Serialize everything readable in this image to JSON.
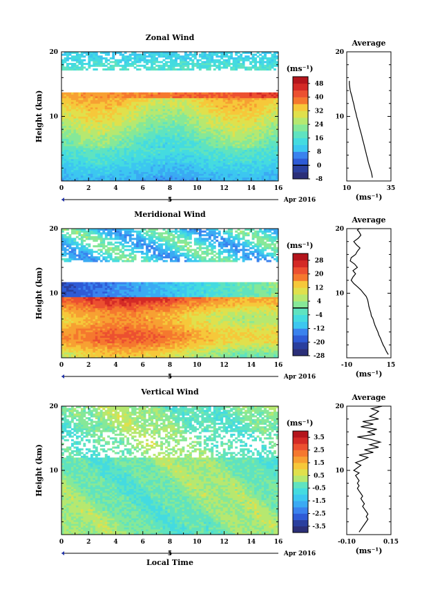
{
  "chart_data": [
    {
      "type": "heatmap",
      "title": "Zonal Wind",
      "ylabel": "Height (km)",
      "xlim": [
        0,
        16
      ],
      "ylim": [
        0,
        20
      ],
      "x_ticks": [
        "0",
        "2",
        "4",
        "6",
        "8",
        "10",
        "12",
        "14",
        "16"
      ],
      "y_ticks": [
        "10",
        "20"
      ],
      "date_label": "Apr 2016",
      "day_marker": "5",
      "colorbar": {
        "unit": "(ms⁻¹)",
        "levels": [
          -8,
          -4,
          0,
          4,
          8,
          12,
          16,
          20,
          24,
          28,
          32,
          36,
          40,
          44,
          48,
          52
        ],
        "labels": [
          "48",
          "40",
          "32",
          "24",
          "16",
          "8",
          "0",
          "-8"
        ],
        "contour_level": "0"
      },
      "average": {
        "title": "Average",
        "xlabel": "(ms⁻¹)",
        "xlim": [
          10,
          35
        ],
        "x_ticks": [
          "10",
          "35"
        ],
        "y_ticks": [
          "10",
          "20"
        ],
        "profile_x": [
          24.5,
          24.2,
          23.8,
          23.2,
          22.6,
          22.1,
          21.7,
          21.2,
          20.8,
          20.3,
          19.9,
          19.4,
          18.9,
          18.5,
          18.0,
          17.5,
          17.0,
          16.6,
          16.1,
          15.6,
          15.2,
          14.7,
          14.3,
          13.9,
          13.4,
          13.0,
          12.5,
          12.0,
          11.7,
          11.5,
          11.5
        ],
        "profile_y": [
          0.5,
          1.0,
          1.5,
          2.0,
          2.5,
          3.0,
          3.5,
          4.0,
          4.5,
          5.0,
          5.5,
          6.0,
          6.5,
          7.0,
          7.5,
          8.0,
          8.5,
          9.0,
          9.5,
          10.0,
          10.5,
          11.0,
          11.5,
          12.0,
          12.5,
          13.0,
          13.5,
          14.0,
          14.5,
          15.0,
          15.5
        ]
      }
    },
    {
      "type": "heatmap",
      "title": "Meridional Wind",
      "ylabel": "Height (km)",
      "xlim": [
        0,
        16
      ],
      "ylim": [
        0,
        20
      ],
      "x_ticks": [
        "0",
        "2",
        "4",
        "6",
        "8",
        "10",
        "12",
        "14",
        "16"
      ],
      "y_ticks": [
        "10",
        "20"
      ],
      "date_label": "Apr 2016",
      "day_marker": "5",
      "colorbar": {
        "unit": "(ms⁻¹)",
        "levels": [
          -28,
          -24,
          -20,
          -16,
          -12,
          -8,
          -4,
          0,
          4,
          8,
          12,
          16,
          20,
          24,
          28,
          32
        ],
        "labels": [
          "28",
          "20",
          "12",
          "4",
          "-4",
          "-12",
          "-20",
          "-28"
        ],
        "contour_level": "0"
      },
      "average": {
        "title": "Average",
        "xlabel": "(ms⁻¹)",
        "xlim": [
          -10,
          15
        ],
        "x_ticks": [
          "-10",
          "15"
        ],
        "y_ticks": [
          "10",
          "20"
        ],
        "profile_x": [
          13.5,
          12.4,
          11.6,
          10.6,
          9.8,
          9.1,
          8.2,
          7.6,
          6.8,
          6.0,
          5.4,
          4.9,
          3.9,
          3.6,
          3.0,
          2.5,
          2.2,
          1.8,
          1.0,
          -0.5,
          -2.0,
          -4.0,
          -6.0,
          -7.5,
          -6.5,
          -5.0,
          -6.5,
          -4.0,
          -5.5,
          -8.0,
          -7.5,
          -5.0,
          -4.0,
          -2.5,
          -4.5,
          -6.0,
          -3.5,
          -2.0,
          -3.0,
          -4.0,
          -3.0,
          -2.0
        ],
        "profile_y": [
          0.5,
          1.0,
          1.5,
          2.0,
          2.5,
          3.0,
          3.5,
          4.0,
          4.5,
          5.0,
          5.5,
          6.0,
          6.5,
          7.0,
          7.5,
          8.0,
          8.5,
          9.0,
          9.5,
          10.0,
          10.5,
          11.0,
          11.5,
          12.0,
          12.5,
          13.0,
          13.5,
          14.0,
          14.5,
          15.0,
          15.5,
          16.0,
          16.5,
          17.0,
          17.5,
          18.0,
          18.5,
          19.0,
          19.5,
          19.8,
          20.0,
          20.0
        ]
      }
    },
    {
      "type": "heatmap",
      "title": "Vertical Wind",
      "ylabel": "Height (km)",
      "xlabel": "Local Time",
      "xlim": [
        0,
        16
      ],
      "ylim": [
        0,
        20
      ],
      "x_ticks": [
        "0",
        "2",
        "4",
        "6",
        "8",
        "10",
        "12",
        "14",
        "16"
      ],
      "y_ticks": [
        "10",
        "20"
      ],
      "date_label": "Apr 2016",
      "day_marker": "5",
      "colorbar": {
        "unit": "(ms⁻¹)",
        "levels": [
          -4,
          -3.5,
          -3,
          -2.5,
          -2,
          -1.5,
          -1,
          -0.5,
          0,
          0.5,
          1,
          1.5,
          2,
          2.5,
          3,
          3.5,
          4
        ],
        "labels": [
          "3.5",
          "2.5",
          "1.5",
          "0.5",
          "-0.5",
          "-1.5",
          "-2.5",
          "-3.5"
        ]
      },
      "average": {
        "title": "Average",
        "xlabel": "(ms⁻¹)",
        "xlim": [
          -0.1,
          0.15
        ],
        "x_ticks": [
          "-0.10",
          "0.15"
        ],
        "y_ticks": [
          "10",
          "20"
        ],
        "profile_x": [
          -0.03,
          -0.02,
          -0.01,
          0.0,
          0.01,
          0.02,
          0.01,
          0.02,
          0.01,
          0.0,
          -0.01,
          0.0,
          -0.01,
          -0.02,
          -0.01,
          -0.02,
          -0.03,
          -0.04,
          -0.03,
          -0.04,
          -0.03,
          -0.04,
          -0.05,
          -0.03,
          -0.06,
          -0.04,
          -0.02,
          -0.05,
          -0.01,
          0.02,
          -0.03,
          0.05,
          0.0,
          0.08,
          0.03,
          0.09,
          0.04,
          -0.04,
          0.06,
          0.02,
          0.07,
          -0.02,
          0.05,
          -0.01,
          0.08,
          0.03,
          0.06,
          0.08,
          0.04,
          0.1
        ],
        "profile_y": [
          0.4,
          0.8,
          1.2,
          1.6,
          2.0,
          2.4,
          2.8,
          3.2,
          3.6,
          4.0,
          4.4,
          4.8,
          5.2,
          5.6,
          6.0,
          6.4,
          6.8,
          7.2,
          7.6,
          8.0,
          8.4,
          8.8,
          9.2,
          9.6,
          10.0,
          10.4,
          10.8,
          11.2,
          11.6,
          12.0,
          12.4,
          12.8,
          13.2,
          13.6,
          14.0,
          14.4,
          14.8,
          15.2,
          15.6,
          16.0,
          16.4,
          16.8,
          17.2,
          17.6,
          18.0,
          18.4,
          18.8,
          19.2,
          19.6,
          20.0
        ]
      }
    }
  ]
}
